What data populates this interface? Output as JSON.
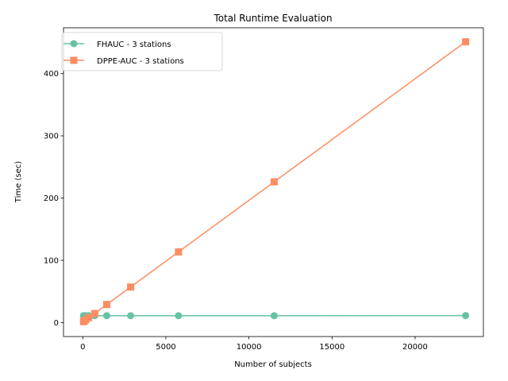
{
  "chart_data": {
    "type": "line",
    "title": "Total Runtime Evaluation",
    "xlabel": "Number of subjects",
    "ylabel": "Time (sec)",
    "xlim": [
      -1160,
      24110
    ],
    "ylim": [
      -22.5,
      473.5
    ],
    "xticks": [
      0,
      5000,
      10000,
      15000,
      20000
    ],
    "yticks": [
      0,
      100,
      200,
      300,
      400
    ],
    "grid": false,
    "legend_position": "top-left",
    "series": [
      {
        "name": "FHAUC - 3 stations",
        "color": "#66c2a5",
        "marker": "circle",
        "x": [
          45,
          90,
          180,
          360,
          720,
          1440,
          2880,
          5760,
          11520,
          23040
        ],
        "y": [
          11,
          11,
          11,
          11,
          11,
          11,
          11,
          11,
          11,
          11.2
        ]
      },
      {
        "name": "DPPE-AUC - 3 stations",
        "color": "#fc8d62",
        "marker": "square",
        "x": [
          45,
          90,
          180,
          360,
          720,
          1440,
          2880,
          5760,
          11520,
          23040
        ],
        "y": [
          1.5,
          2.5,
          4.5,
          8,
          14.5,
          29,
          57,
          113.5,
          226,
          451
        ]
      }
    ]
  }
}
